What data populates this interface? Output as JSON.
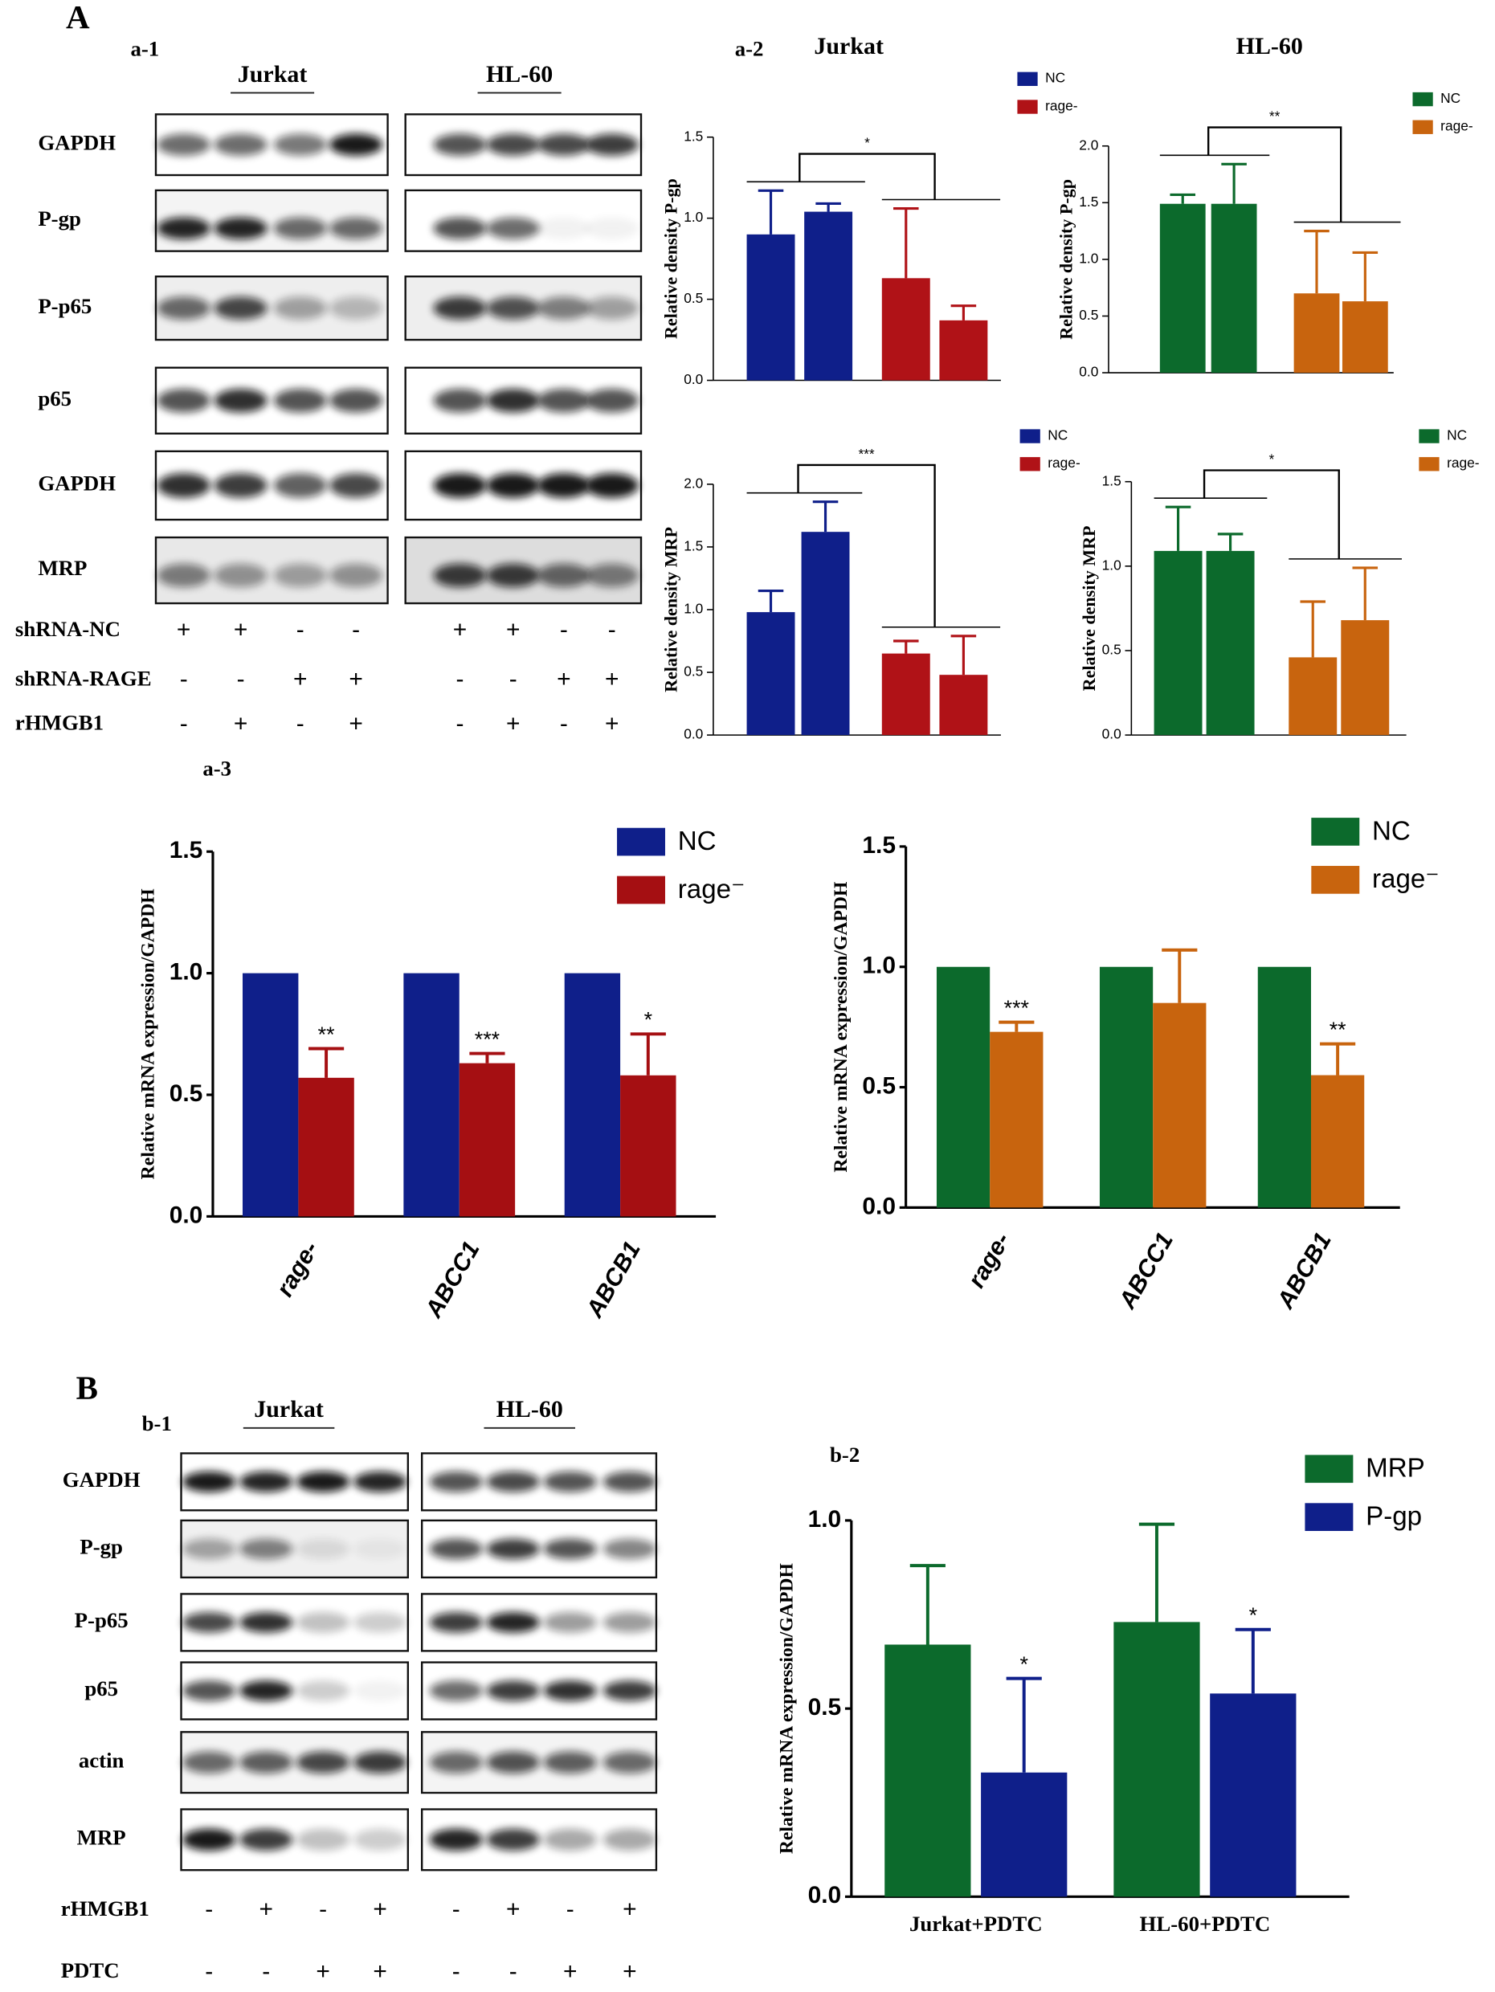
{
  "figure": {
    "panel_labels": [
      "A",
      "a-1",
      "a-2",
      "a-3",
      "B",
      "b-1",
      "b-2"
    ],
    "blot_a": {
      "cell_lines": [
        "Jurkat",
        "HL-60"
      ],
      "rows": [
        "GAPDH",
        "P-gp",
        "P-p65",
        "p65",
        "GAPDH",
        "MRP"
      ],
      "conditions": [
        {
          "name": "shRNA-NC",
          "signs": [
            "+",
            "+",
            "-",
            "-",
            "+",
            "+",
            "-",
            "-"
          ]
        },
        {
          "name": "shRNA-RAGE",
          "signs": [
            "-",
            "-",
            "+",
            "+",
            "-",
            "-",
            "+",
            "+"
          ]
        },
        {
          "name": "rHMGB1",
          "signs": [
            "-",
            "+",
            "-",
            "+",
            "-",
            "+",
            "-",
            "+"
          ]
        }
      ]
    },
    "blot_b": {
      "cell_lines": [
        "Jurkat",
        "HL-60"
      ],
      "rows": [
        "GAPDH",
        "P-gp",
        "P-p65",
        "p65",
        "actin",
        "MRP"
      ],
      "conditions": [
        {
          "name": "rHMGB1",
          "signs": [
            "-",
            "+",
            "-",
            "+",
            "-",
            "+",
            "-",
            "+"
          ]
        },
        {
          "name": "PDTC",
          "signs": [
            "-",
            "-",
            "+",
            "+",
            "-",
            "-",
            "+",
            "+"
          ]
        }
      ]
    }
  },
  "chart_data": [
    {
      "type": "bar",
      "title": "Jurkat",
      "y_label": "Relative density P-gp",
      "categories": [
        null,
        null,
        null,
        null
      ],
      "series": [
        {
          "name": "NC",
          "color": "#0f1f8a",
          "values": [
            0.9,
            1.04,
            null,
            null
          ],
          "errors": [
            0.27,
            0.05,
            null,
            null
          ]
        },
        {
          "name": "rage-",
          "color": "#b01217",
          "values": [
            null,
            null,
            0.63,
            0.37
          ],
          "errors": [
            null,
            null,
            0.43,
            0.09
          ]
        }
      ],
      "annotation": "*",
      "ylim": [
        0,
        1.5
      ],
      "yticks": [
        {
          "value": 0,
          "label": "0.0"
        },
        0.5,
        {
          "value": 1,
          "label": "1.0"
        },
        1.5
      ]
    },
    {
      "type": "bar",
      "title": "HL-60",
      "y_label": "Relative density P-gp",
      "categories": [
        null,
        null,
        null,
        null
      ],
      "series": [
        {
          "name": "NC",
          "color": "#0c6a2c",
          "values": [
            1.49,
            1.49,
            null,
            null
          ],
          "errors": [
            0.08,
            0.35,
            null,
            null
          ]
        },
        {
          "name": "rage-",
          "color": "#c8640e",
          "values": [
            null,
            null,
            0.7,
            0.63
          ],
          "errors": [
            null,
            null,
            0.55,
            0.43
          ]
        }
      ],
      "annotation": "**",
      "ylim": [
        0,
        2
      ],
      "yticks": [
        {
          "value": 0,
          "label": "0.0"
        },
        0.5,
        {
          "value": 1,
          "label": "1.0"
        },
        1.5,
        {
          "value": 2,
          "label": "2.0"
        }
      ]
    },
    {
      "type": "bar",
      "y_label": "Relative density MRP",
      "categories": [
        null,
        null,
        null,
        null
      ],
      "series": [
        {
          "name": "NC",
          "color": "#0f1f8a",
          "values": [
            0.98,
            1.62,
            null,
            null
          ],
          "errors": [
            0.17,
            0.24,
            null,
            null
          ]
        },
        {
          "name": "rage-",
          "color": "#b01217",
          "values": [
            null,
            null,
            0.65,
            0.48
          ],
          "errors": [
            null,
            null,
            0.1,
            0.31
          ]
        }
      ],
      "annotation": "***",
      "ylim": [
        0,
        2
      ],
      "yticks": [
        {
          "value": 0,
          "label": "0.0"
        },
        0.5,
        {
          "value": 1,
          "label": "1.0"
        },
        1.5,
        {
          "value": 2,
          "label": "2.0"
        }
      ]
    },
    {
      "type": "bar",
      "y_label": "Relative density MRP",
      "categories": [
        null,
        null,
        null,
        null
      ],
      "series": [
        {
          "name": "NC",
          "color": "#0c6a2c",
          "values": [
            1.09,
            1.09,
            null,
            null
          ],
          "errors": [
            0.26,
            0.1,
            null,
            null
          ]
        },
        {
          "name": "rage-",
          "color": "#c8640e",
          "values": [
            null,
            null,
            0.46,
            0.68
          ],
          "errors": [
            null,
            null,
            0.33,
            0.31
          ]
        }
      ],
      "annotation": "*",
      "ylim": [
        0,
        1.5
      ],
      "yticks": [
        {
          "value": 0,
          "label": "0.0"
        },
        0.5,
        {
          "value": 1,
          "label": "1.0"
        },
        1.5
      ]
    },
    {
      "type": "grouped_bar",
      "y_label": "Relative mRNA expression/GAPDH",
      "categories": [
        "rage-",
        "ABCC1",
        "ABCB1"
      ],
      "series": [
        {
          "name": "NC",
          "color": "#0f1f8a",
          "values": [
            1,
            1,
            1
          ]
        },
        {
          "name": "rage⁻",
          "color": "#a50f12",
          "values": [
            0.57,
            0.63,
            0.58
          ],
          "errors": [
            0.12,
            0.04,
            0.17
          ],
          "annotations": [
            "**",
            "***",
            "*"
          ]
        }
      ],
      "ylim": [
        0,
        1.5
      ],
      "yticks": [
        {
          "value": 0,
          "label": "0.0"
        },
        0.5,
        {
          "value": 1,
          "label": "1.0"
        },
        1.5
      ]
    },
    {
      "type": "grouped_bar",
      "y_label": "Relative mRNA expression/GAPDH",
      "categories": [
        "rage-",
        "ABCC1",
        "ABCB1"
      ],
      "series": [
        {
          "name": "NC",
          "color": "#0c6a2c",
          "values": [
            1,
            1,
            1
          ]
        },
        {
          "name": "rage⁻",
          "color": "#c8640e",
          "values": [
            0.73,
            0.85,
            0.55
          ],
          "errors": [
            0.04,
            0.22,
            0.13
          ],
          "annotations": [
            "***",
            null,
            "**"
          ]
        }
      ],
      "ylim": [
        0,
        1.5
      ],
      "yticks": [
        {
          "value": 0,
          "label": "0.0"
        },
        0.5,
        {
          "value": 1,
          "label": "1.0"
        },
        1.5
      ]
    },
    {
      "type": "grouped_bar",
      "y_label": "Relative mRNA expression/GAPDH",
      "categories": [
        "Jurkat+PDTC",
        "HL-60+PDTC"
      ],
      "series": [
        {
          "name": "MRP",
          "color": "#0c6a2c",
          "values": [
            0.67,
            0.73
          ],
          "errors": [
            0.21,
            0.26
          ]
        },
        {
          "name": "P-gp",
          "color": "#0f1f8a",
          "values": [
            0.33,
            0.54
          ],
          "errors": [
            0.25,
            0.17
          ],
          "annotations": [
            "*",
            "*"
          ]
        }
      ],
      "ylim": [
        0,
        1
      ],
      "yticks": [
        {
          "value": 0,
          "label": "0.0"
        },
        0.5,
        {
          "value": 1,
          "label": "1.0"
        }
      ]
    }
  ]
}
